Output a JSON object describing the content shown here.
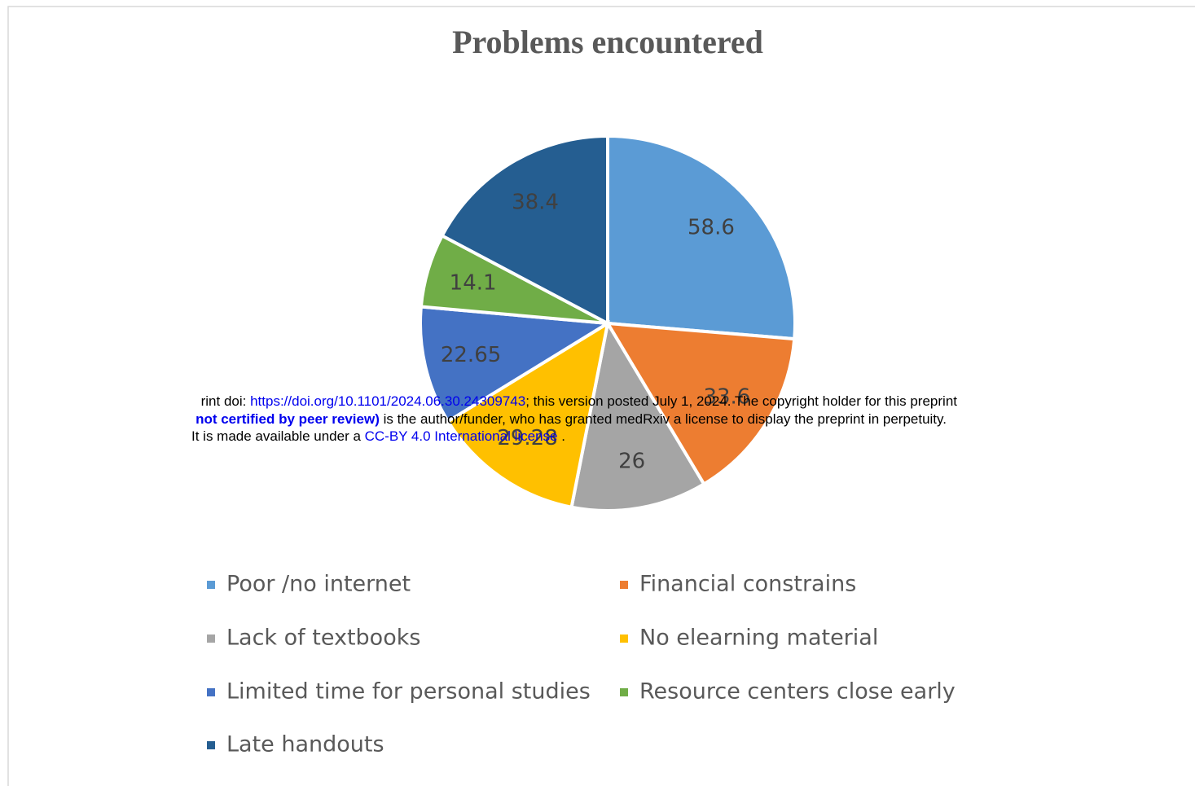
{
  "chart_data": {
    "type": "pie",
    "title": "Problems encountered",
    "categories": [
      "Poor /no internet",
      "Financial constrains",
      "Lack of textbooks",
      "No elearning material",
      "Limited time for personal studies",
      "Resource centers close early",
      "Late handouts"
    ],
    "values": [
      58.6,
      33.6,
      26,
      29.28,
      22.65,
      14.1,
      38.4
    ],
    "colors": [
      "#5b9bd5",
      "#ed7d31",
      "#a5a5a5",
      "#ffc000",
      "#4472c4",
      "#70ad47",
      "#255e91"
    ],
    "legend": "bottom"
  },
  "overlay": {
    "line1": {
      "prefix": "rint doi: ",
      "link": "https://doi.org/10.1101/2024.06.30.24309743",
      "suffix": "; this version posted July 1, 2024. The copyright holder for this preprint"
    },
    "line2": {
      "bold": "not certified by peer review)",
      "suffix": " is the author/funder, who has granted medRxiv a license to display the preprint in perpetuity."
    },
    "line3": {
      "prefix": "It is made available under a ",
      "link": "CC-BY 4.0 International license",
      "suffix": " ."
    }
  }
}
